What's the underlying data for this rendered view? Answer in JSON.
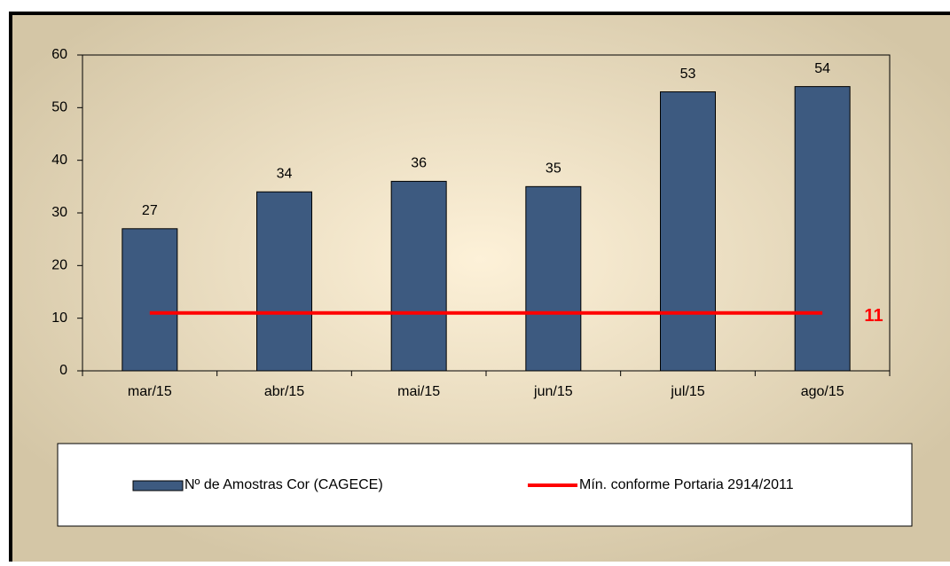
{
  "chart_data": {
    "type": "bar",
    "categories": [
      "mar/15",
      "abr/15",
      "mai/15",
      "jun/15",
      "jul/15",
      "ago/15"
    ],
    "series": [
      {
        "name": "Nº de Amostras Cor (CAGECE)",
        "type": "bar",
        "color": "#3d5a80",
        "values": [
          27,
          34,
          36,
          35,
          53,
          54
        ]
      },
      {
        "name": "Mín. conforme Portaria 2914/2011",
        "type": "line",
        "color": "#ff0000",
        "values": [
          11,
          11,
          11,
          11,
          11,
          11
        ]
      }
    ],
    "ylim": [
      0,
      60
    ],
    "yticks": [
      0,
      10,
      20,
      30,
      40,
      50,
      60
    ],
    "grid": false,
    "legend": "bottom"
  }
}
